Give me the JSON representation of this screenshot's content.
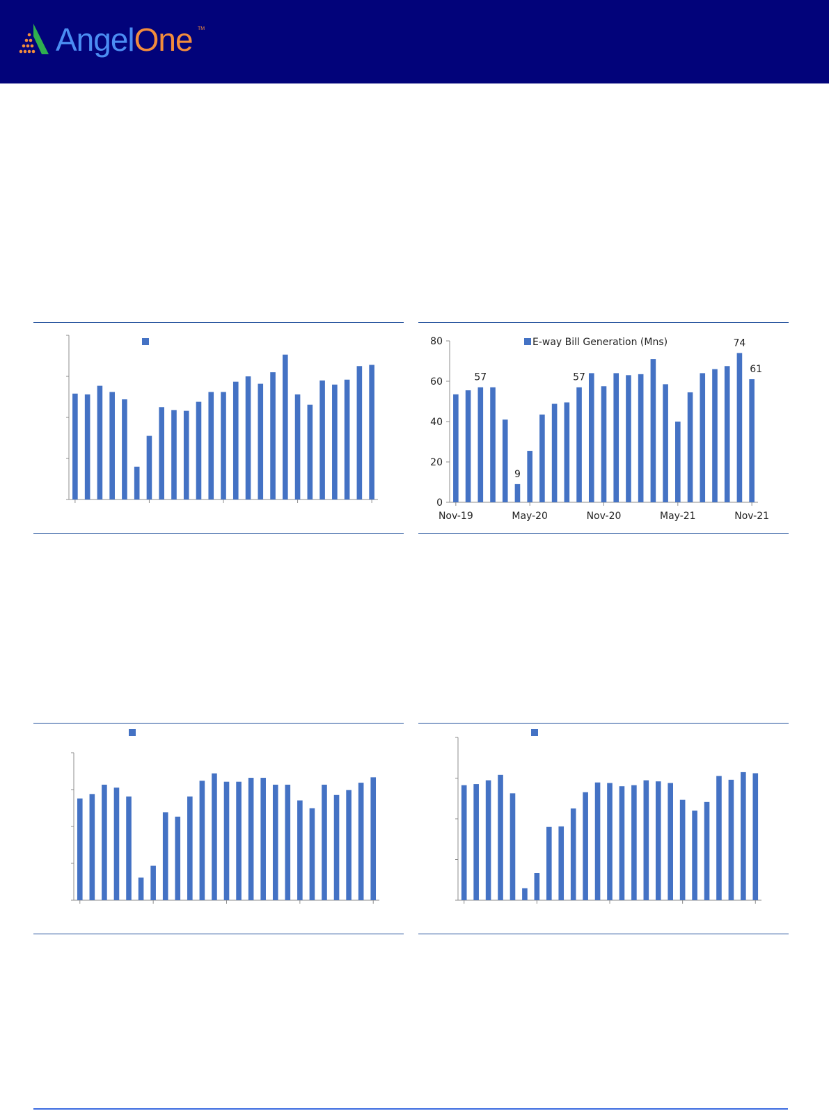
{
  "brand": {
    "name_part1": "Angel",
    "name_part2": "One",
    "trademark": "TM",
    "colors": {
      "header_bg": "#02037a",
      "angel": "#4b8df2",
      "one": "#f28c3c"
    }
  },
  "chart_data": [
    {
      "id": "top-left",
      "type": "bar",
      "title": "",
      "legend": "",
      "bar_color": "#4472c4",
      "ylim": [
        0,
        4
      ],
      "yticks": [],
      "xticks": [],
      "values": [
        2.58,
        2.56,
        2.77,
        2.62,
        2.44,
        0.8,
        1.55,
        2.25,
        2.18,
        2.16,
        2.38,
        2.62,
        2.62,
        2.87,
        3.0,
        2.82,
        3.1,
        3.53,
        2.56,
        2.31,
        2.9,
        2.8,
        2.92,
        3.25,
        3.28
      ],
      "data_labels": []
    },
    {
      "id": "top-right",
      "type": "bar",
      "title": "",
      "legend": "E-way Bill Generation (Mns)",
      "bar_color": "#4472c4",
      "ylim": [
        0,
        80
      ],
      "yticks": [
        0,
        20,
        40,
        60,
        80
      ],
      "xticks": [
        "Nov-19",
        "May-20",
        "Nov-20",
        "May-21",
        "Nov-21"
      ],
      "categories": [
        "Nov-19",
        "Dec-19",
        "Jan-20",
        "Feb-20",
        "Mar-20",
        "Apr-20",
        "May-20",
        "Jun-20",
        "Jul-20",
        "Aug-20",
        "Sep-20",
        "Oct-20",
        "Nov-20",
        "Dec-20",
        "Jan-21",
        "Feb-21",
        "Mar-21",
        "Apr-21",
        "May-21",
        "Jun-21",
        "Jul-21",
        "Aug-21",
        "Sep-21",
        "Oct-21",
        "Nov-21"
      ],
      "values": [
        53.5,
        55.5,
        57,
        57,
        41,
        9,
        25.5,
        43.5,
        48.8,
        49.5,
        57,
        64,
        57.5,
        64,
        63,
        63.5,
        71,
        58.5,
        40,
        54.5,
        64,
        66,
        67.5,
        74,
        61
      ],
      "data_labels": [
        {
          "index": 2,
          "text": "57"
        },
        {
          "index": 5,
          "text": "9"
        },
        {
          "index": 10,
          "text": "57"
        },
        {
          "index": 23,
          "text": "74"
        },
        {
          "index": 24,
          "text": "61"
        }
      ]
    },
    {
      "id": "bottom-left",
      "type": "bar",
      "title": "",
      "legend": "",
      "bar_color": "#4472c4",
      "ylim": [
        0,
        3
      ],
      "yticks": [],
      "xticks": [],
      "values": [
        2.07,
        2.16,
        2.35,
        2.29,
        2.11,
        0.46,
        0.7,
        1.79,
        1.7,
        2.11,
        2.43,
        2.58,
        2.41,
        2.41,
        2.49,
        2.49,
        2.35,
        2.35,
        2.03,
        1.87,
        2.35,
        2.14,
        2.24,
        2.39,
        2.5
      ],
      "data_labels": []
    },
    {
      "id": "bottom-right",
      "type": "bar",
      "title": "",
      "legend": "",
      "bar_color": "#4472c4",
      "ylim": [
        0,
        3
      ],
      "yticks": [],
      "xticks": [],
      "values": [
        2.12,
        2.14,
        2.21,
        2.31,
        1.97,
        0.22,
        0.5,
        1.35,
        1.36,
        1.69,
        1.99,
        2.17,
        2.16,
        2.1,
        2.12,
        2.21,
        2.19,
        2.16,
        1.85,
        1.65,
        1.81,
        2.29,
        2.22,
        2.36,
        2.34
      ],
      "data_labels": []
    }
  ]
}
